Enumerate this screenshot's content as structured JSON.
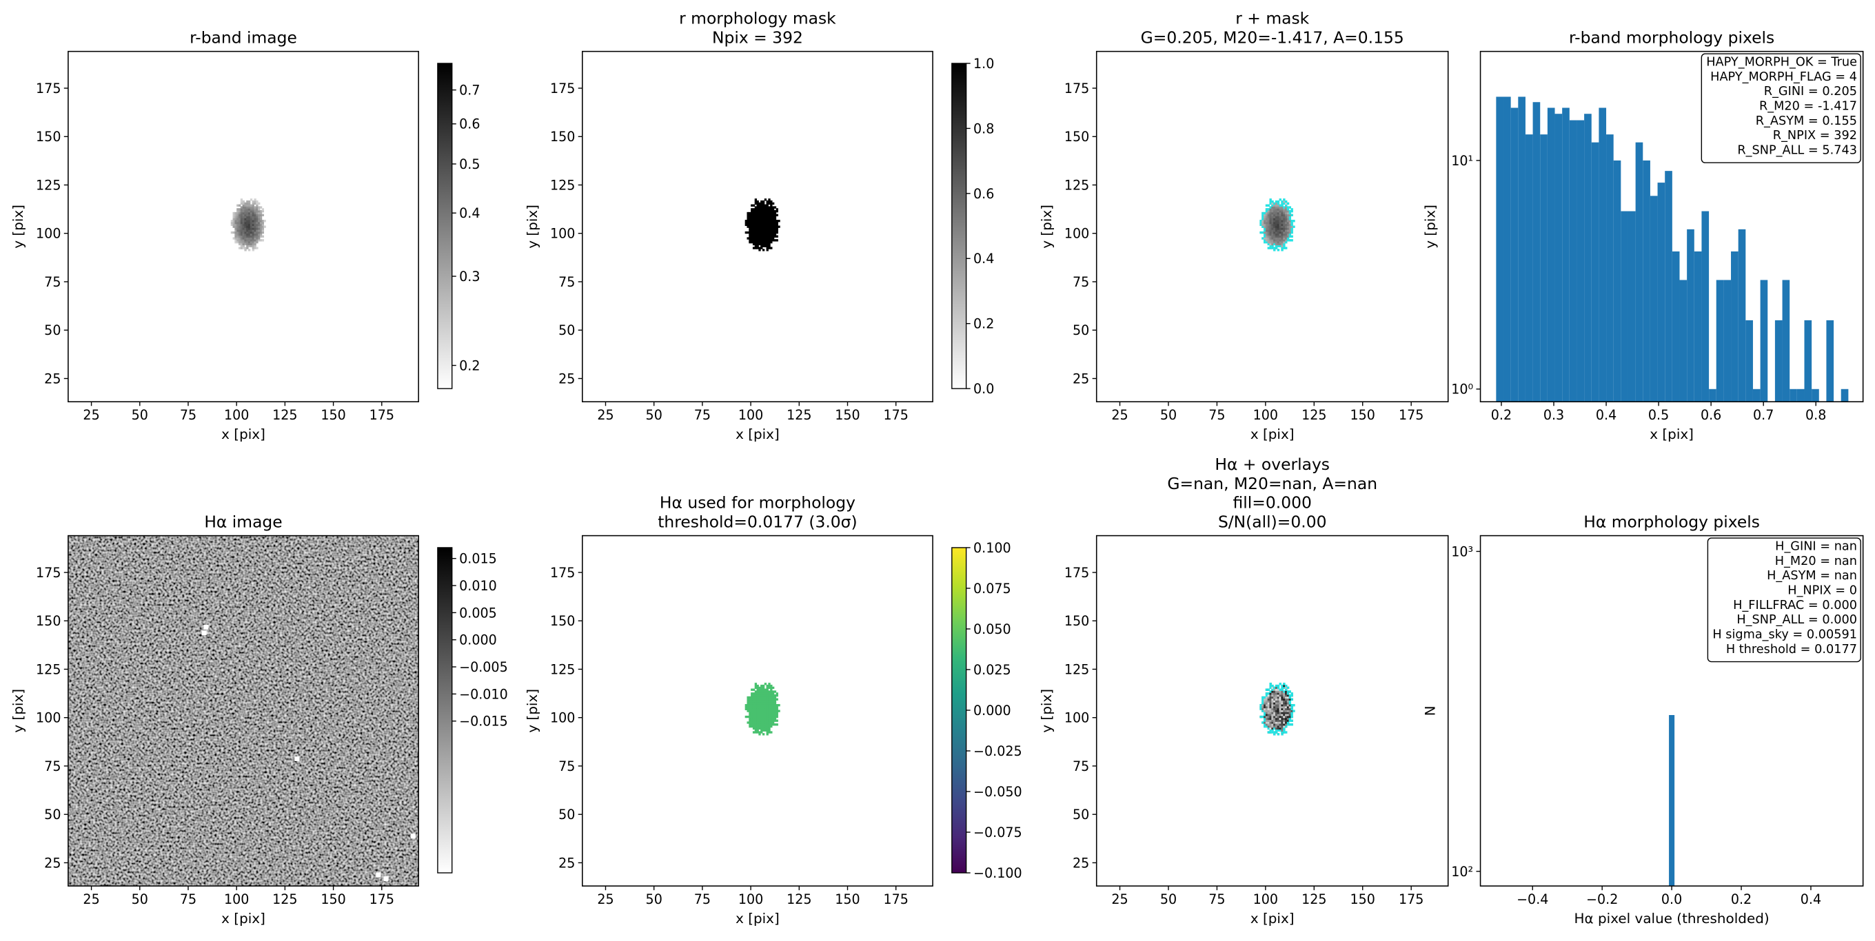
{
  "chart_data": [
    {
      "type": "image",
      "title": [
        "r-band image"
      ],
      "xlabel": "x [pix]",
      "ylabel": "y [pix]",
      "xlim": [
        13,
        194
      ],
      "ylim": [
        13,
        194
      ],
      "xticks": [
        25,
        50,
        75,
        100,
        125,
        150,
        175
      ],
      "yticks": [
        25,
        50,
        75,
        100,
        125,
        150,
        175
      ],
      "colorbar": {
        "cmap": "gray_r",
        "scale": "log",
        "lim": [
          0.18,
          0.79
        ],
        "ticks": [
          0.2,
          0.3,
          0.4,
          0.5,
          0.6,
          0.7
        ]
      }
    },
    {
      "type": "image",
      "title": [
        "r morphology mask",
        "Npix = 392"
      ],
      "xlabel": "x [pix]",
      "ylabel": "y [pix]",
      "xlim": [
        13,
        194
      ],
      "ylim": [
        13,
        194
      ],
      "xticks": [
        25,
        50,
        75,
        100,
        125,
        150,
        175
      ],
      "yticks": [
        25,
        50,
        75,
        100,
        125,
        150,
        175
      ],
      "colorbar": {
        "cmap": "gray_r",
        "scale": "linear",
        "lim": [
          0,
          1
        ],
        "ticks": [
          {
            "value": 0,
            "label": "0.0"
          },
          0.2,
          0.4,
          0.6,
          0.8,
          {
            "value": 1,
            "label": "1.0"
          }
        ]
      }
    },
    {
      "type": "image",
      "title": [
        "r + mask",
        "G=0.205, M20=-1.417, A=0.155"
      ],
      "xlabel": "x [pix]",
      "ylabel": "y [pix]",
      "xlim": [
        13,
        194
      ],
      "ylim": [
        13,
        194
      ],
      "xticks": [
        25,
        50,
        75,
        100,
        125,
        150,
        175
      ],
      "yticks": [
        25,
        50,
        75,
        100,
        125,
        150,
        175
      ]
    },
    {
      "type": "histogram",
      "title": [
        "r-band morphology pixels"
      ],
      "xlabel": "x [pix]",
      "ylabel": "y [pix]",
      "color": "#1f77b4",
      "bins": [
        0.19,
        0.204,
        0.218,
        0.232,
        0.246,
        0.26,
        0.274,
        0.288,
        0.302,
        0.316,
        0.33,
        0.344,
        0.358,
        0.372,
        0.386,
        0.4,
        0.414,
        0.428,
        0.442,
        0.456,
        0.47,
        0.484,
        0.498,
        0.512,
        0.526,
        0.54,
        0.554,
        0.568,
        0.582,
        0.596,
        0.61,
        0.624,
        0.638,
        0.652,
        0.666,
        0.68,
        0.694,
        0.708,
        0.722,
        0.736,
        0.75,
        0.764,
        0.778,
        0.792,
        0.806,
        0.82,
        0.834,
        0.848,
        0.862
      ],
      "counts": [
        19,
        19,
        17,
        19,
        13,
        18,
        13,
        17,
        16,
        17,
        15,
        15,
        16,
        12,
        17,
        13,
        10,
        6,
        6,
        12,
        10,
        7,
        8,
        9,
        4,
        3,
        5,
        4,
        6,
        1,
        3,
        3,
        4,
        5,
        2,
        1,
        3,
        0,
        2,
        3,
        1,
        1,
        2,
        1,
        0,
        2,
        0,
        1
      ],
      "xlim": [
        0.16,
        0.89
      ],
      "xticks": [
        0.2,
        0.3,
        0.4,
        0.5,
        0.6,
        0.7,
        0.8
      ],
      "yscale": "log",
      "ylim": [
        0.88,
        30
      ],
      "yticks": [
        {
          "value": 1,
          "label": "10⁰"
        },
        {
          "value": 10,
          "label": "10¹"
        }
      ],
      "annotations": [
        "HAPY_MORPH_OK = True",
        "HAPY_MORPH_FLAG = 4",
        "R_GINI = 0.205",
        "R_M20 = -1.417",
        "R_ASYM = 0.155",
        "R_NPIX = 392",
        "R_SNP_ALL = 5.743"
      ]
    },
    {
      "type": "image",
      "title": [
        "Hα image"
      ],
      "xlabel": "x [pix]",
      "ylabel": "y [pix]",
      "xlim": [
        13,
        194
      ],
      "ylim": [
        13,
        194
      ],
      "xticks": [
        25,
        50,
        75,
        100,
        125,
        150,
        175
      ],
      "yticks": [
        25,
        50,
        75,
        100,
        125,
        150,
        175
      ],
      "colorbar": {
        "cmap": "gray_r",
        "scale": "linear",
        "lim": [
          -0.043,
          0.017
        ],
        "ticks": [
          0.015,
          {
            "value": 0.01,
            "label": "0.010"
          },
          0.005,
          {
            "value": 0,
            "label": "0.000"
          },
          {
            "value": -0.005,
            "label": "−0.005"
          },
          {
            "value": -0.01,
            "label": "−0.010"
          },
          {
            "value": -0.015,
            "label": "−0.015"
          }
        ]
      }
    },
    {
      "type": "image",
      "title": [
        "Hα used for morphology",
        "threshold=0.0177 (3.0σ)"
      ],
      "xlabel": "x [pix]",
      "ylabel": "y [pix]",
      "xlim": [
        13,
        194
      ],
      "ylim": [
        13,
        194
      ],
      "xticks": [
        25,
        50,
        75,
        100,
        125,
        150,
        175
      ],
      "yticks": [
        25,
        50,
        75,
        100,
        125,
        150,
        175
      ],
      "colorbar": {
        "cmap": "viridis",
        "scale": "linear",
        "lim": [
          -0.1,
          0.1
        ],
        "ticks": [
          {
            "value": 0.1,
            "label": "0.100"
          },
          {
            "value": 0.075,
            "label": "0.075"
          },
          {
            "value": 0.05,
            "label": "0.050"
          },
          {
            "value": 0.025,
            "label": "0.025"
          },
          {
            "value": 0,
            "label": "0.000"
          },
          {
            "value": -0.025,
            "label": "−0.025"
          },
          {
            "value": -0.05,
            "label": "−0.050"
          },
          {
            "value": -0.075,
            "label": "−0.075"
          },
          {
            "value": -0.1,
            "label": "−0.100"
          }
        ]
      }
    },
    {
      "type": "image",
      "title": [
        "Hα + overlays",
        "G=nan, M20=nan, A=nan",
        "fill=0.000",
        "S/N(all)=0.00"
      ],
      "xlabel": "x [pix]",
      "ylabel": "y [pix]",
      "xlim": [
        13,
        194
      ],
      "ylim": [
        13,
        194
      ],
      "xticks": [
        25,
        50,
        75,
        100,
        125,
        150,
        175
      ],
      "yticks": [
        25,
        50,
        75,
        100,
        125,
        150,
        175
      ]
    },
    {
      "type": "histogram",
      "title": [
        "Hα morphology pixels"
      ],
      "xlabel": "Hα pixel value (thresholded)",
      "ylabel": "N",
      "color": "#1f77b4",
      "bins": [
        -0.008,
        0.008
      ],
      "counts": [
        308
      ],
      "xlim": [
        -0.55,
        0.55
      ],
      "xticks": [
        {
          "value": -0.4,
          "label": "−0.4"
        },
        {
          "value": -0.2,
          "label": "−0.2"
        },
        {
          "value": 0,
          "label": "0.0"
        },
        0.2,
        0.4
      ],
      "yscale": "log",
      "ylim": [
        90,
        1120
      ],
      "yticks": [
        {
          "value": 100,
          "label": "10²"
        },
        {
          "value": 1000,
          "label": "10³"
        }
      ],
      "annotations": [
        "H_GINI = nan",
        "H_M20 = nan",
        "H_ASYM = nan",
        "H_NPIX = 0",
        "H_FILLFRAC = 0.000",
        "H_SNP_ALL = 0.000",
        "H sigma_sky = 0.00591",
        "H threshold = 0.0177"
      ]
    }
  ]
}
